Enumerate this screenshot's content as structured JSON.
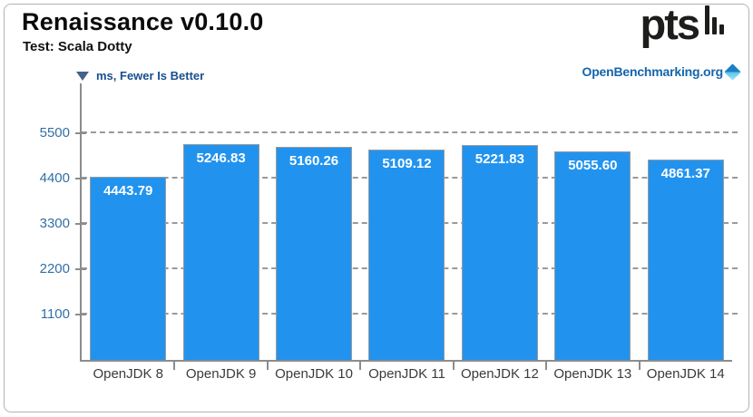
{
  "header": {
    "title": "Renaissance v0.10.0",
    "subtitle": "Test: Scala Dotty"
  },
  "branding": {
    "pts_logo_text": "pts",
    "site_name": "OpenBenchmarking.org"
  },
  "legend": {
    "label": "ms, Fewer Is Better",
    "icon": "down-triangle-icon"
  },
  "chart_data": {
    "type": "bar",
    "title": "Renaissance v0.10.0",
    "subtitle": "Test: Scala Dotty",
    "unit_note": "ms, Fewer Is Better",
    "orientation": "vertical",
    "categories": [
      "OpenJDK 8",
      "OpenJDK 9",
      "OpenJDK 10",
      "OpenJDK 11",
      "OpenJDK 12",
      "OpenJDK 13",
      "OpenJDK 14"
    ],
    "values": [
      4443.79,
      5246.83,
      5160.26,
      5109.12,
      5221.83,
      5055.6,
      4861.37
    ],
    "value_labels": [
      "4443.79",
      "5246.83",
      "5160.26",
      "5109.12",
      "5221.83",
      "5055.60",
      "4861.37"
    ],
    "y_ticks": [
      1100,
      2200,
      3300,
      4400,
      5500
    ],
    "ylim": [
      0,
      6710
    ],
    "grid": "dashed-horizontal",
    "legend_position": "top-left"
  },
  "colors": {
    "bar_fill": "#2193ef",
    "bar_border": "#9a9a9a",
    "axis": "#8c8c8c",
    "gridline": "#9a9a9a",
    "y_tick_label": "#336fa5",
    "x_tick_label": "#3b3b3b",
    "legend_text": "#1a4e8f",
    "site_text": "#1465ac",
    "value_label": "#ffffff",
    "title_text": "#0b0b0b"
  }
}
